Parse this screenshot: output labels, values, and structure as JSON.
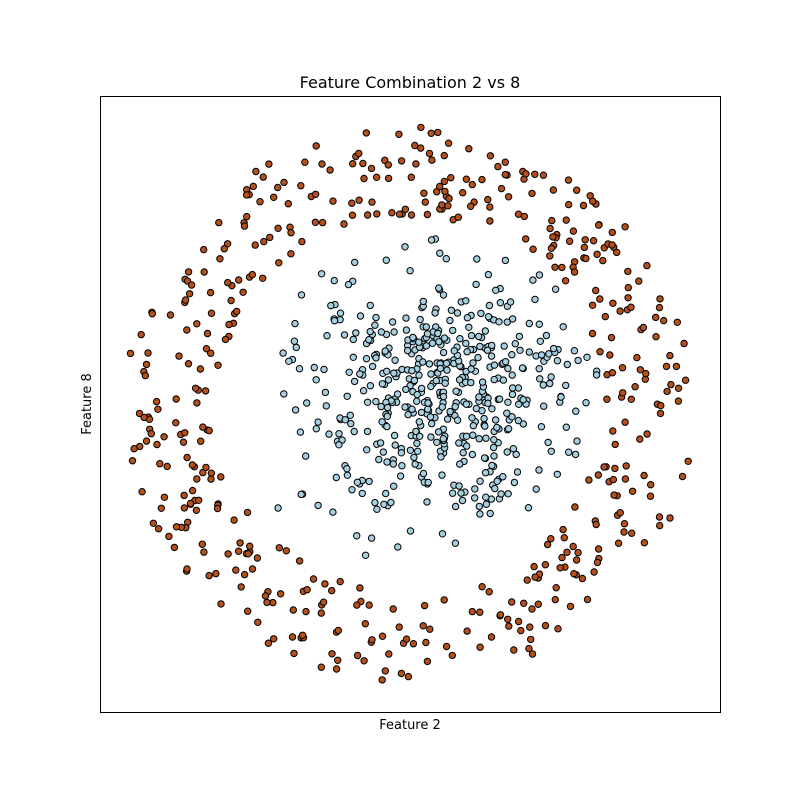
{
  "chart_data": {
    "type": "scatter",
    "title": "Feature Combination 2 vs 8",
    "xlabel": "Feature 2",
    "ylabel": "Feature 8",
    "xlim": [
      -1.25,
      1.25
    ],
    "ylim": [
      -1.25,
      1.25
    ],
    "ticks_visible": false,
    "grid": false,
    "legend": "none",
    "colors": {
      "outer": "#b5501d",
      "inner": "#a6cfe0",
      "edge": "#000000",
      "background": "#ffffff"
    },
    "generation": {
      "seed": 20240817,
      "outer": {
        "count": 480,
        "radius_min": 0.78,
        "radius_max": 1.15
      },
      "inner": {
        "count": 520,
        "radius_sd": 0.28,
        "radius_max": 0.72
      }
    }
  }
}
